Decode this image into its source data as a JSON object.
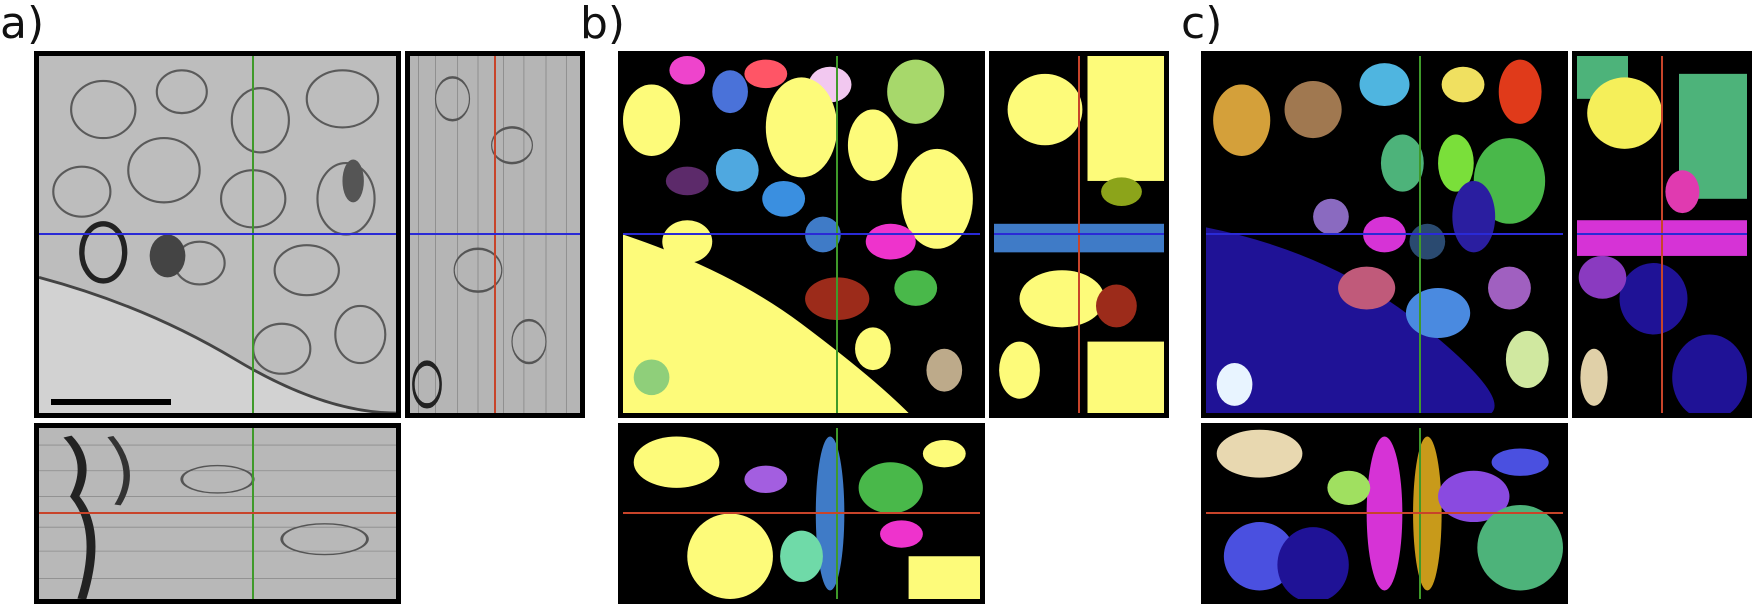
{
  "panels": [
    {
      "label": "a)"
    },
    {
      "label": "b)"
    },
    {
      "label": "c)"
    }
  ],
  "colors": {
    "crosshair_green": "#3f9a2a",
    "crosshair_blue": "#2a2ad6",
    "crosshair_red": "#c8442a",
    "em_light": "#c9c9c9",
    "em_dark": "#3a3a3a",
    "seg_yellow": "#fdfb7a",
    "seg_navy": "#1f1296"
  },
  "views": {
    "em": "electron-microscopy-image",
    "seg_b": "segmentation-overlay",
    "seg_c": "segmentation-overlay"
  }
}
